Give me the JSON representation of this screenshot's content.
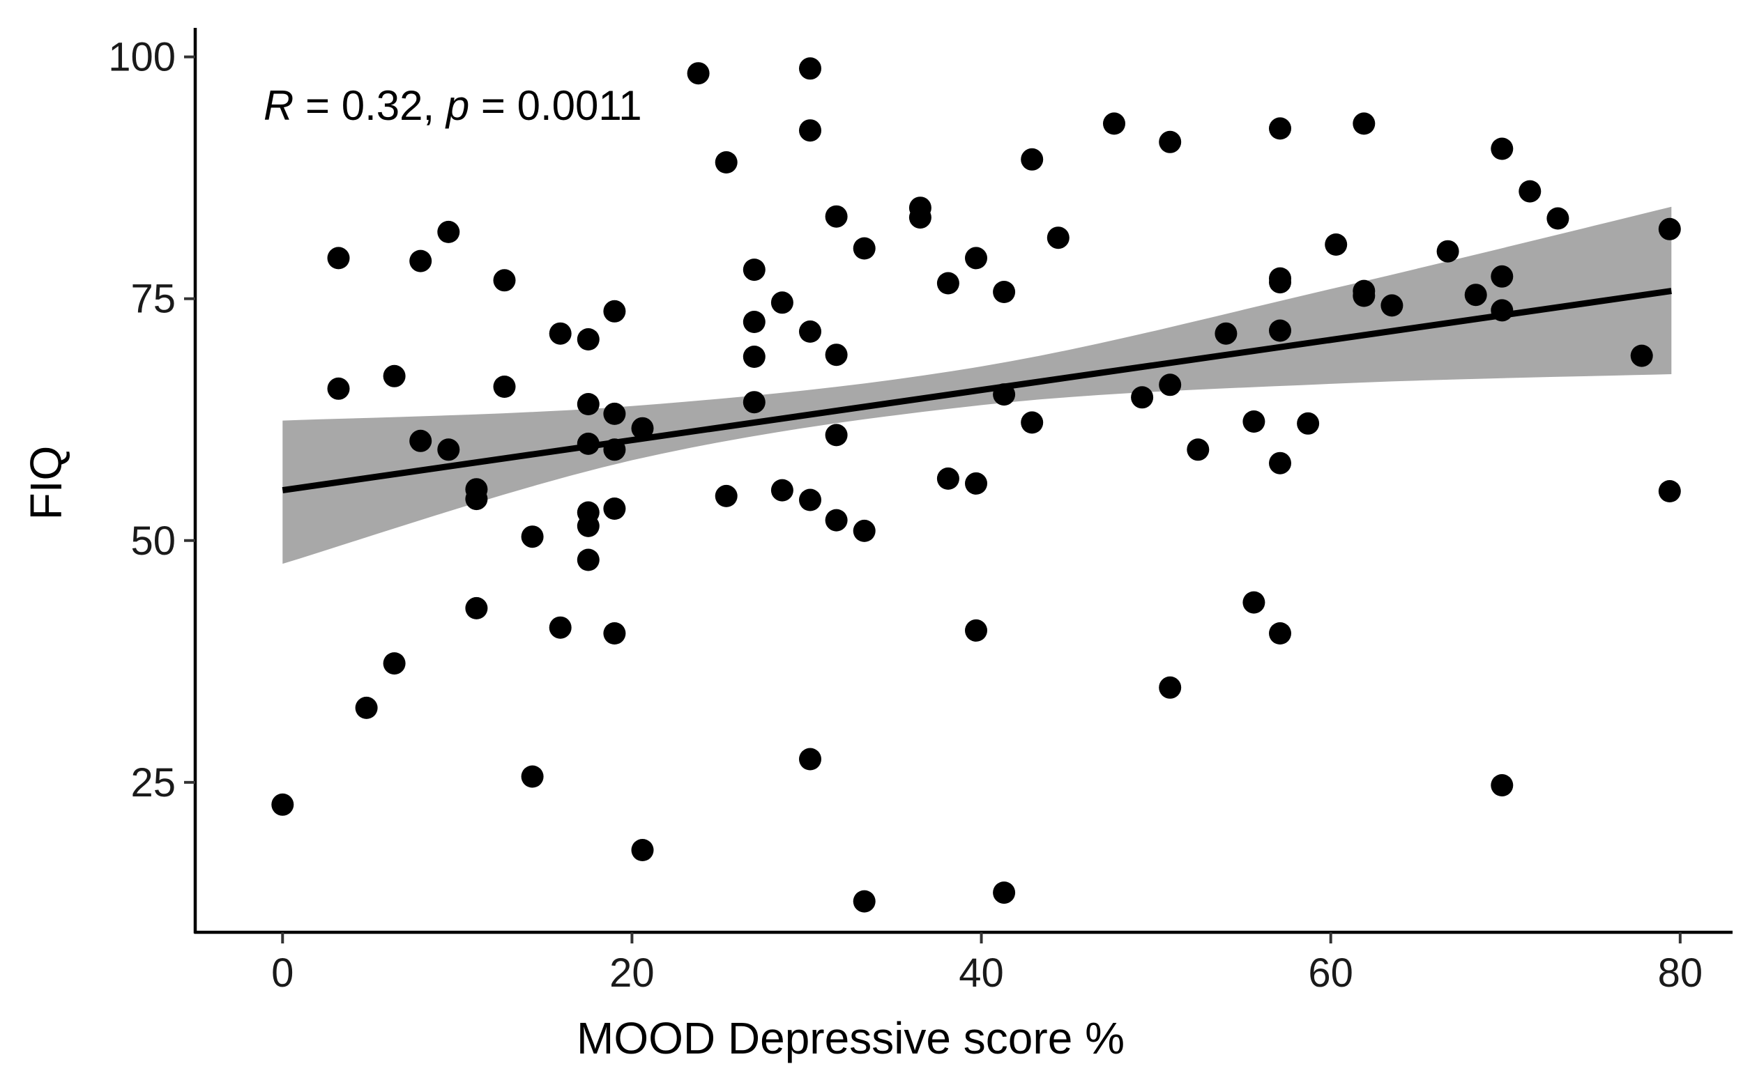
{
  "chart_data": {
    "type": "scatter",
    "xlabel": "MOOD Depressive score %",
    "ylabel": "FIQ",
    "xlim": [
      -5,
      83
    ],
    "ylim": [
      9.5,
      103
    ],
    "x_ticks": [
      0,
      20,
      40,
      60,
      80
    ],
    "y_ticks": [
      25,
      50,
      75,
      100
    ],
    "grid": false,
    "annotation": {
      "r_label": "R",
      "r_rest": " = 0.32, ",
      "p_label": "p",
      "p_rest": " = 0.0011"
    },
    "regression": {
      "x": [
        0,
        79.5
      ],
      "y": [
        55.2,
        75.8
      ],
      "ci_upper": [
        [
          0,
          62.4
        ],
        [
          20,
          63.9
        ],
        [
          40,
          68.0
        ],
        [
          60,
          76.0
        ],
        [
          79.5,
          84.5
        ]
      ],
      "ci_lower": [
        [
          0,
          47.6
        ],
        [
          20,
          58.3
        ],
        [
          40,
          64.0
        ],
        [
          60,
          66.2
        ],
        [
          79.5,
          67.2
        ]
      ],
      "line_color": "#000000",
      "band_color": "#a8a8a8"
    },
    "point_color": "#000000",
    "points": [
      {
        "x": 0,
        "y": 22.7
      },
      {
        "x": 3.2,
        "y": 79.2
      },
      {
        "x": 3.2,
        "y": 65.7
      },
      {
        "x": 4.8,
        "y": 32.7
      },
      {
        "x": 6.4,
        "y": 67.0
      },
      {
        "x": 6.4,
        "y": 37.3
      },
      {
        "x": 7.9,
        "y": 78.9
      },
      {
        "x": 7.9,
        "y": 60.3
      },
      {
        "x": 9.5,
        "y": 81.9
      },
      {
        "x": 9.5,
        "y": 59.4
      },
      {
        "x": 11.1,
        "y": 55.3
      },
      {
        "x": 11.1,
        "y": 54.3
      },
      {
        "x": 11.1,
        "y": 43.0
      },
      {
        "x": 12.7,
        "y": 76.9
      },
      {
        "x": 12.7,
        "y": 65.9
      },
      {
        "x": 14.3,
        "y": 50.4
      },
      {
        "x": 14.3,
        "y": 25.6
      },
      {
        "x": 15.9,
        "y": 71.4
      },
      {
        "x": 15.9,
        "y": 41.0
      },
      {
        "x": 17.5,
        "y": 70.8
      },
      {
        "x": 17.5,
        "y": 64.1
      },
      {
        "x": 17.5,
        "y": 60.0
      },
      {
        "x": 17.5,
        "y": 52.9
      },
      {
        "x": 17.5,
        "y": 51.5
      },
      {
        "x": 17.5,
        "y": 48.0
      },
      {
        "x": 19.0,
        "y": 73.7
      },
      {
        "x": 19.0,
        "y": 63.1
      },
      {
        "x": 19.0,
        "y": 59.4
      },
      {
        "x": 19.0,
        "y": 53.3
      },
      {
        "x": 19.0,
        "y": 40.4
      },
      {
        "x": 20.6,
        "y": 61.6
      },
      {
        "x": 20.6,
        "y": 18.0
      },
      {
        "x": 23.8,
        "y": 98.3
      },
      {
        "x": 25.4,
        "y": 89.1
      },
      {
        "x": 25.4,
        "y": 54.6
      },
      {
        "x": 27.0,
        "y": 78.0
      },
      {
        "x": 27.0,
        "y": 72.6
      },
      {
        "x": 27.0,
        "y": 69.0
      },
      {
        "x": 27.0,
        "y": 64.3
      },
      {
        "x": 28.6,
        "y": 74.6
      },
      {
        "x": 28.6,
        "y": 55.2
      },
      {
        "x": 30.2,
        "y": 98.8
      },
      {
        "x": 30.2,
        "y": 92.4
      },
      {
        "x": 30.2,
        "y": 71.6
      },
      {
        "x": 30.2,
        "y": 54.2
      },
      {
        "x": 30.2,
        "y": 27.4
      },
      {
        "x": 31.7,
        "y": 83.5
      },
      {
        "x": 31.7,
        "y": 69.2
      },
      {
        "x": 31.7,
        "y": 60.9
      },
      {
        "x": 31.7,
        "y": 52.1
      },
      {
        "x": 33.3,
        "y": 80.2
      },
      {
        "x": 33.3,
        "y": 51.0
      },
      {
        "x": 33.3,
        "y": 12.7
      },
      {
        "x": 36.5,
        "y": 84.4
      },
      {
        "x": 36.5,
        "y": 83.4
      },
      {
        "x": 38.1,
        "y": 76.6
      },
      {
        "x": 38.1,
        "y": 56.4
      },
      {
        "x": 39.7,
        "y": 79.2
      },
      {
        "x": 39.7,
        "y": 55.9
      },
      {
        "x": 39.7,
        "y": 40.7
      },
      {
        "x": 41.3,
        "y": 75.7
      },
      {
        "x": 41.3,
        "y": 65.1
      },
      {
        "x": 41.3,
        "y": 13.6
      },
      {
        "x": 42.9,
        "y": 89.4
      },
      {
        "x": 42.9,
        "y": 62.2
      },
      {
        "x": 44.4,
        "y": 81.3
      },
      {
        "x": 47.6,
        "y": 93.1
      },
      {
        "x": 49.2,
        "y": 64.8
      },
      {
        "x": 50.8,
        "y": 91.2
      },
      {
        "x": 50.8,
        "y": 66.1
      },
      {
        "x": 50.8,
        "y": 34.8
      },
      {
        "x": 52.4,
        "y": 59.4
      },
      {
        "x": 54.0,
        "y": 71.4
      },
      {
        "x": 55.6,
        "y": 62.3
      },
      {
        "x": 55.6,
        "y": 43.6
      },
      {
        "x": 57.1,
        "y": 92.6
      },
      {
        "x": 57.1,
        "y": 77.1
      },
      {
        "x": 57.1,
        "y": 76.7
      },
      {
        "x": 57.1,
        "y": 71.7
      },
      {
        "x": 57.1,
        "y": 58.0
      },
      {
        "x": 57.1,
        "y": 40.4
      },
      {
        "x": 58.7,
        "y": 62.1
      },
      {
        "x": 60.3,
        "y": 80.6
      },
      {
        "x": 61.9,
        "y": 93.1
      },
      {
        "x": 61.9,
        "y": 75.8
      },
      {
        "x": 61.9,
        "y": 75.3
      },
      {
        "x": 63.5,
        "y": 74.3
      },
      {
        "x": 66.7,
        "y": 79.9
      },
      {
        "x": 68.3,
        "y": 75.4
      },
      {
        "x": 69.8,
        "y": 90.5
      },
      {
        "x": 69.8,
        "y": 77.3
      },
      {
        "x": 69.8,
        "y": 73.8
      },
      {
        "x": 69.8,
        "y": 24.7
      },
      {
        "x": 71.4,
        "y": 86.1
      },
      {
        "x": 73.0,
        "y": 83.3
      },
      {
        "x": 77.8,
        "y": 69.1
      },
      {
        "x": 79.4,
        "y": 82.2
      },
      {
        "x": 79.4,
        "y": 55.1
      }
    ]
  }
}
